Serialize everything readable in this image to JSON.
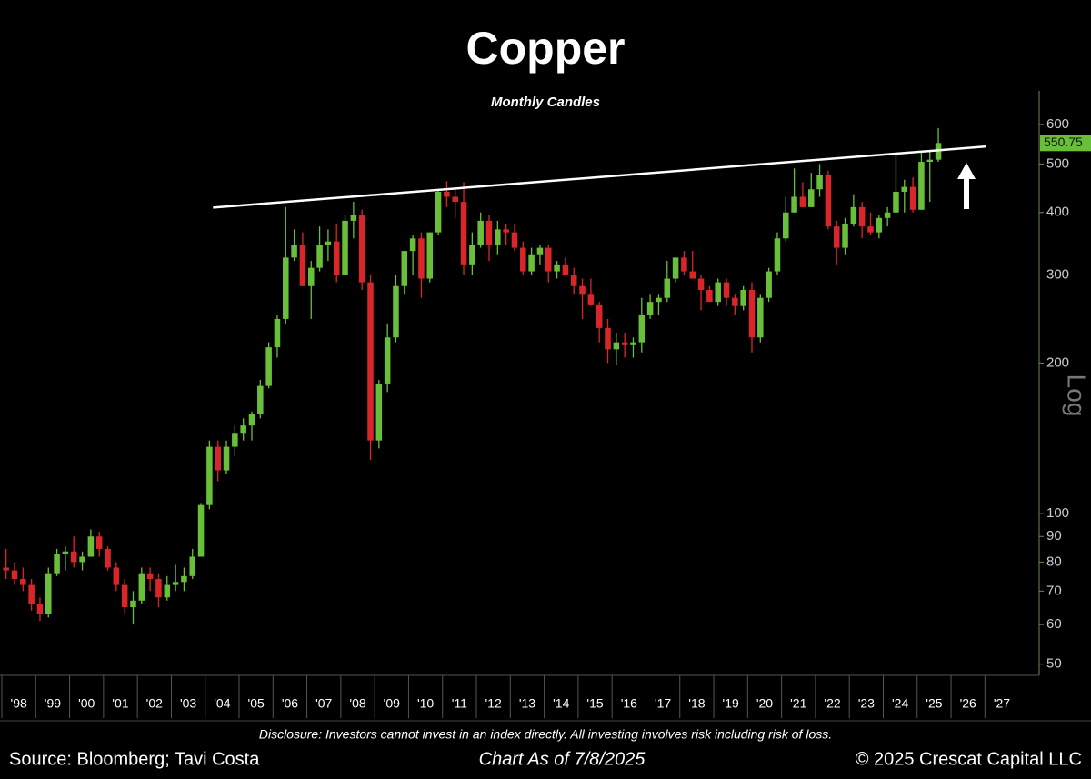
{
  "chart_data": {
    "type": "candlestick",
    "title": "Copper",
    "subtitle": "Monthly Candles",
    "y_scale_label": "Log",
    "log_scale": true,
    "last_price": 550.75,
    "disclosure": "Disclosure: Investors cannot invest in an index directly. All investing involves risk including risk of loss.",
    "source": "Source: Bloomberg; Tavi Costa",
    "as_of": "Chart As of 7/8/2025",
    "copyright": "© 2025 Crescat Capital LLC",
    "up_color": "#6abf3a",
    "down_color": "#d9262a",
    "axis_color": "#6a8a5a",
    "trendline_color": "#ffffff",
    "xlim": [
      1998,
      2028.6
    ],
    "ylim": [
      47.5,
      700
    ],
    "yticks": [
      600,
      500,
      400,
      300,
      200,
      100,
      90,
      80,
      70,
      60,
      50
    ],
    "xticks": [
      {
        "value": 1998,
        "label": "'98"
      },
      {
        "value": 1999,
        "label": "'99"
      },
      {
        "value": 2000,
        "label": "'00"
      },
      {
        "value": 2001,
        "label": "'01"
      },
      {
        "value": 2002,
        "label": "'02"
      },
      {
        "value": 2003,
        "label": "'03"
      },
      {
        "value": 2004,
        "label": "'04"
      },
      {
        "value": 2005,
        "label": "'05"
      },
      {
        "value": 2006,
        "label": "'06"
      },
      {
        "value": 2007,
        "label": "'07"
      },
      {
        "value": 2008,
        "label": "'08"
      },
      {
        "value": 2009,
        "label": "'09"
      },
      {
        "value": 2010,
        "label": "'10"
      },
      {
        "value": 2011,
        "label": "'11"
      },
      {
        "value": 2012,
        "label": "'12"
      },
      {
        "value": 2013,
        "label": "'13"
      },
      {
        "value": 2014,
        "label": "'14"
      },
      {
        "value": 2015,
        "label": "'15"
      },
      {
        "value": 2016,
        "label": "'16"
      },
      {
        "value": 2017,
        "label": "'17"
      },
      {
        "value": 2018,
        "label": "'18"
      },
      {
        "value": 2019,
        "label": "'19"
      },
      {
        "value": 2020,
        "label": "'20"
      },
      {
        "value": 2021,
        "label": "'21"
      },
      {
        "value": 2022,
        "label": "'22"
      },
      {
        "value": 2023,
        "label": "'23"
      },
      {
        "value": 2024,
        "label": "'24"
      },
      {
        "value": 2025,
        "label": "'25"
      },
      {
        "value": 2026,
        "label": "'26"
      },
      {
        "value": 2027,
        "label": "'27"
      }
    ],
    "trendline": {
      "x": [
        2004.23,
        2027.04
      ],
      "y": [
        409,
        542
      ]
    },
    "x": [
      1998.125,
      1998.375,
      1998.625,
      1998.875,
      1999.125,
      1999.375,
      1999.625,
      1999.875,
      2000.125,
      2000.375,
      2000.625,
      2000.875,
      2001.125,
      2001.375,
      2001.625,
      2001.875,
      2002.125,
      2002.375,
      2002.625,
      2002.875,
      2003.125,
      2003.375,
      2003.625,
      2003.875,
      2004.125,
      2004.375,
      2004.625,
      2004.875,
      2005.125,
      2005.375,
      2005.625,
      2005.875,
      2006.125,
      2006.375,
      2006.625,
      2006.875,
      2007.125,
      2007.375,
      2007.625,
      2007.875,
      2008.125,
      2008.375,
      2008.625,
      2008.875,
      2009.125,
      2009.375,
      2009.625,
      2009.875,
      2010.125,
      2010.375,
      2010.625,
      2010.875,
      2011.125,
      2011.375,
      2011.625,
      2011.875,
      2012.125,
      2012.375,
      2012.625,
      2012.875,
      2013.125,
      2013.375,
      2013.625,
      2013.875,
      2014.125,
      2014.375,
      2014.625,
      2014.875,
      2015.125,
      2015.375,
      2015.625,
      2015.875,
      2016.125,
      2016.375,
      2016.625,
      2016.875,
      2017.125,
      2017.375,
      2017.625,
      2017.875,
      2018.125,
      2018.375,
      2018.625,
      2018.875,
      2019.125,
      2019.375,
      2019.625,
      2019.875,
      2020.125,
      2020.375,
      2020.625,
      2020.875,
      2021.125,
      2021.375,
      2021.625,
      2021.875,
      2022.125,
      2022.375,
      2022.625,
      2022.875,
      2023.125,
      2023.375,
      2023.625,
      2023.875,
      2024.125,
      2024.375,
      2024.625,
      2024.875,
      2025.125,
      2025.375,
      2025.625
    ],
    "open": [
      78,
      77,
      74,
      72,
      66,
      63,
      76,
      83,
      84,
      80,
      82,
      90,
      85,
      78,
      72,
      65,
      67,
      76,
      74,
      68,
      72,
      73,
      75,
      82,
      104,
      136,
      122,
      136,
      145,
      150,
      158,
      180,
      215,
      245,
      325,
      345,
      285,
      310,
      345,
      350,
      300,
      385,
      395,
      290,
      140,
      182,
      225,
      285,
      335,
      355,
      295,
      365,
      440,
      430,
      420,
      315,
      345,
      385,
      345,
      370,
      365,
      340,
      305,
      330,
      340,
      305,
      315,
      300,
      285,
      275,
      262,
      235,
      213,
      220,
      218,
      220,
      250,
      265,
      270,
      295,
      325,
      305,
      295,
      280,
      265,
      290,
      270,
      260,
      280,
      225,
      270,
      305,
      355,
      400,
      430,
      410,
      445,
      475,
      375,
      340,
      380,
      410,
      375,
      365,
      390,
      400,
      440,
      450,
      405,
      505,
      510
    ],
    "high": [
      85,
      80,
      78,
      74,
      68,
      78,
      85,
      86,
      90,
      84,
      93,
      92,
      86,
      80,
      74,
      70,
      78,
      78,
      76,
      75,
      79,
      78,
      85,
      105,
      140,
      140,
      140,
      150,
      155,
      160,
      185,
      220,
      250,
      410,
      370,
      365,
      320,
      375,
      370,
      380,
      395,
      420,
      405,
      300,
      185,
      240,
      300,
      335,
      360,
      365,
      365,
      445,
      462,
      445,
      460,
      365,
      400,
      395,
      385,
      380,
      380,
      350,
      340,
      345,
      345,
      320,
      325,
      310,
      295,
      295,
      265,
      245,
      230,
      230,
      225,
      270,
      275,
      275,
      320,
      325,
      335,
      335,
      300,
      285,
      295,
      295,
      275,
      285,
      290,
      275,
      310,
      365,
      430,
      490,
      460,
      480,
      500,
      485,
      385,
      390,
      435,
      420,
      400,
      395,
      410,
      520,
      465,
      470,
      530,
      530,
      590
    ],
    "low": [
      74,
      72,
      70,
      64,
      61,
      62,
      75,
      77,
      78,
      77,
      82,
      82,
      77,
      70,
      63,
      60,
      66,
      70,
      65,
      67,
      70,
      70,
      74,
      82,
      102,
      116,
      120,
      130,
      140,
      140,
      155,
      178,
      205,
      240,
      320,
      285,
      245,
      305,
      320,
      290,
      300,
      355,
      280,
      128,
      135,
      175,
      220,
      275,
      300,
      270,
      290,
      360,
      410,
      390,
      300,
      300,
      340,
      320,
      330,
      345,
      335,
      300,
      300,
      315,
      290,
      295,
      300,
      275,
      245,
      260,
      220,
      200,
      198,
      205,
      205,
      210,
      245,
      250,
      265,
      290,
      300,
      300,
      255,
      265,
      260,
      260,
      250,
      255,
      210,
      220,
      265,
      300,
      350,
      400,
      410,
      410,
      430,
      370,
      315,
      330,
      375,
      355,
      360,
      355,
      375,
      400,
      400,
      400,
      405,
      420,
      505
    ],
    "close": [
      77,
      74,
      72,
      66,
      63,
      76,
      83,
      84,
      80,
      82,
      90,
      85,
      78,
      72,
      65,
      67,
      76,
      74,
      68,
      72,
      73,
      75,
      82,
      104,
      136,
      122,
      136,
      145,
      150,
      158,
      180,
      215,
      245,
      325,
      345,
      285,
      310,
      345,
      350,
      300,
      385,
      395,
      290,
      140,
      182,
      225,
      285,
      335,
      355,
      295,
      365,
      440,
      430,
      420,
      315,
      345,
      385,
      345,
      370,
      365,
      340,
      305,
      330,
      340,
      305,
      315,
      300,
      285,
      275,
      262,
      235,
      213,
      220,
      218,
      220,
      250,
      265,
      270,
      295,
      325,
      305,
      295,
      280,
      265,
      290,
      270,
      260,
      280,
      225,
      270,
      305,
      355,
      400,
      430,
      410,
      445,
      475,
      375,
      340,
      380,
      410,
      375,
      365,
      390,
      400,
      440,
      450,
      405,
      505,
      510,
      550.75
    ]
  }
}
